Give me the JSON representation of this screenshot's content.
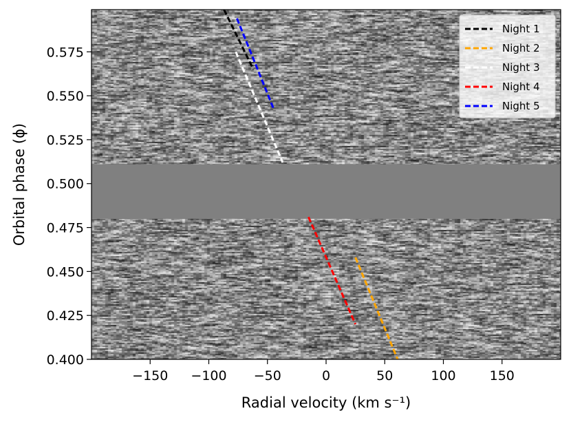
{
  "chart_data": {
    "type": "heatmap",
    "title": "",
    "xlabel": "Radial velocity (km s⁻¹)",
    "ylabel": "Orbital phase (ϕ)",
    "xlim": [
      -200,
      200
    ],
    "ylim": [
      0.4,
      0.599
    ],
    "x_ticks": [
      -150,
      -100,
      -50,
      0,
      50,
      100,
      150
    ],
    "x_tick_labels": [
      "−150",
      "−100",
      "−50",
      "0",
      "50",
      "100",
      "150"
    ],
    "y_ticks": [
      0.4,
      0.425,
      0.45,
      0.475,
      0.5,
      0.525,
      0.55,
      0.575
    ],
    "y_tick_labels": [
      "0.400",
      "0.425",
      "0.450",
      "0.475",
      "0.500",
      "0.525",
      "0.550",
      "0.575"
    ],
    "masked_phase_range": [
      0.48,
      0.511
    ],
    "mask_color": "#808080",
    "legend_position": "top-right",
    "series": [
      {
        "name": "Night 1",
        "color": "#000000",
        "x": [
          -87,
          -62
        ],
        "y": [
          0.599,
          0.565
        ]
      },
      {
        "name": "Night 2",
        "color": "#ffa500",
        "x": [
          25,
          61
        ],
        "y": [
          0.458,
          0.4
        ]
      },
      {
        "name": "Night 3",
        "color": "#ffffff",
        "x": [
          -77,
          -37
        ],
        "y": [
          0.575,
          0.512
        ]
      },
      {
        "name": "Night 4",
        "color": "#ff0000",
        "x": [
          -15,
          25
        ],
        "y": [
          0.481,
          0.42
        ]
      },
      {
        "name": "Night 5",
        "color": "#0000ff",
        "x": [
          -76,
          -45
        ],
        "y": [
          0.594,
          0.543
        ]
      }
    ]
  }
}
